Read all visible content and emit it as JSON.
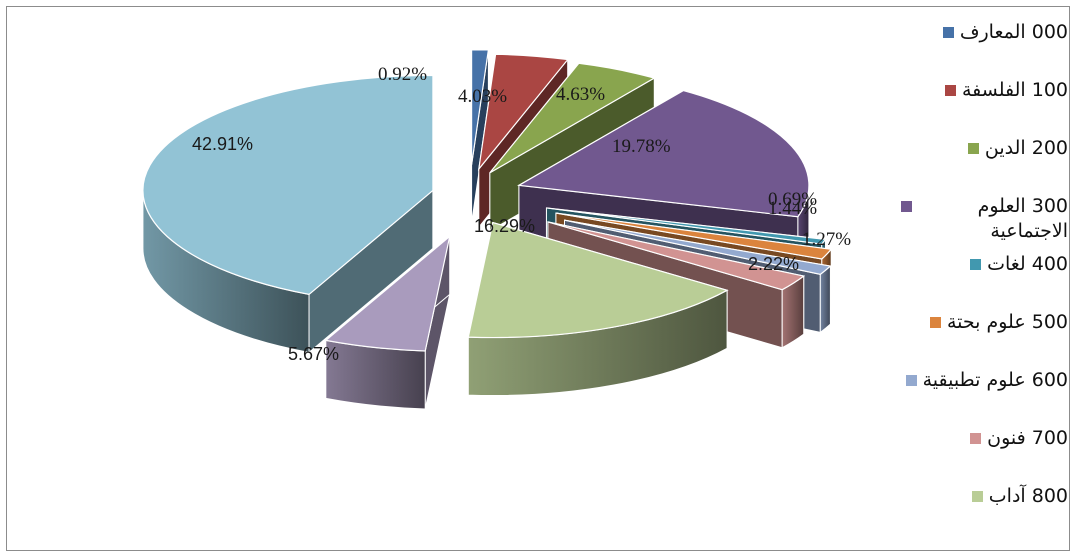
{
  "chart_data": {
    "type": "pie",
    "style": "exploded-3d",
    "legend_position": "right",
    "slices": [
      {
        "name": "000 المعارف",
        "value": 0.92,
        "label": "0.92%",
        "color": "#4672a8"
      },
      {
        "name": "100 الفلسفة",
        "value": 4.03,
        "label": "4.03%",
        "color": "#aa4643"
      },
      {
        "name": "200 الدين",
        "value": 4.63,
        "label": "4.63%",
        "color": "#89a54e"
      },
      {
        "name": "300 العلوم الاجتماعية",
        "value": 19.78,
        "label": "19.78%",
        "color": "#71588f"
      },
      {
        "name": "400 لغات",
        "value": 0.69,
        "label": "0.69%",
        "color": "#4198af"
      },
      {
        "name": "500 علوم بحتة",
        "value": 1.44,
        "label": "1.44%",
        "color": "#db843d"
      },
      {
        "name": "600 علوم تطبيقية",
        "value": 1.27,
        "label": "1.27%",
        "color": "#93a9cf"
      },
      {
        "name": "700 فنون",
        "value": 2.22,
        "label": "2.22%",
        "color": "#d19392"
      },
      {
        "name": "800 آداب",
        "value": 16.29,
        "label": "16.29%",
        "color": "#b9cd96"
      },
      {
        "name": "",
        "value": 5.67,
        "label": "5.67%",
        "color": "#a99bbd"
      },
      {
        "name": "",
        "value": 42.91,
        "label": "42.91%",
        "color": "#92c3d5"
      }
    ]
  }
}
